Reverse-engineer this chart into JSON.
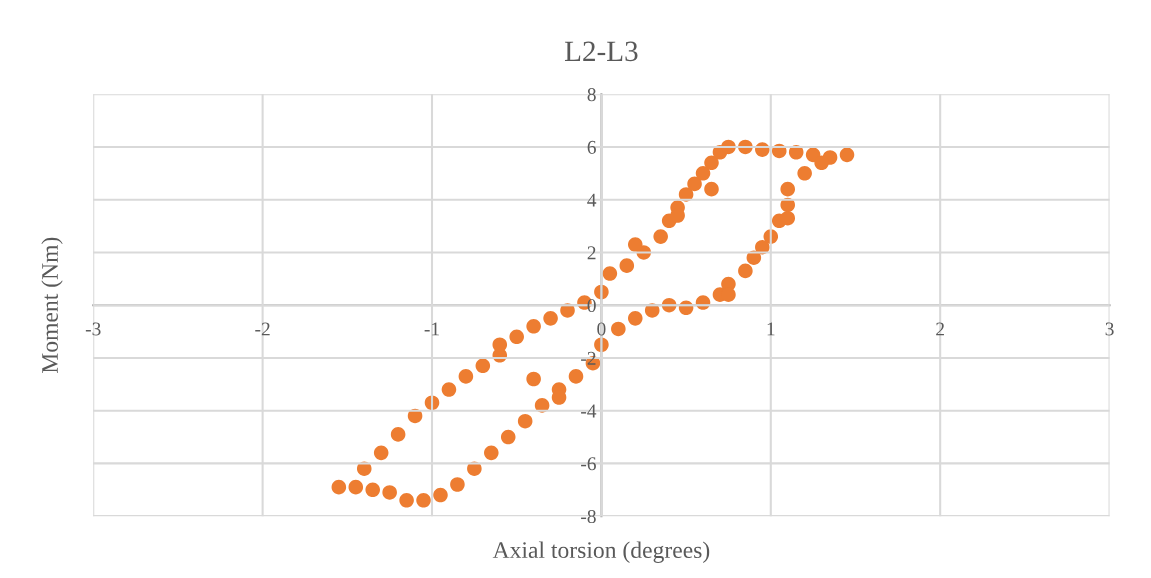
{
  "chart_data": {
    "type": "scatter",
    "title": "L2-L3",
    "xlabel": "Axial torsion (degrees)",
    "ylabel": "Moment (Nm)",
    "x": [
      -1.55,
      -1.4,
      -1.3,
      -1.2,
      -1.1,
      -1.0,
      -0.9,
      -0.8,
      -0.7,
      -0.6,
      -0.5,
      -0.4,
      -0.3,
      -0.2,
      -0.1,
      0.0,
      0.05,
      0.15,
      0.25,
      0.35,
      0.4,
      0.45,
      0.5,
      0.55,
      0.6,
      0.65,
      0.7,
      0.75,
      0.85,
      0.95,
      1.05,
      1.15,
      1.25,
      1.35,
      1.45,
      1.3,
      1.2,
      1.1,
      1.1,
      1.05,
      1.0,
      0.95,
      0.9,
      0.85,
      0.75,
      0.7,
      0.6,
      0.5,
      0.4,
      0.3,
      0.2,
      0.1,
      0.0,
      -0.05,
      -0.15,
      -0.25,
      -0.35,
      -0.45,
      -0.55,
      -0.65,
      -0.75,
      -0.85,
      -0.95,
      -1.05,
      -1.15,
      -1.25,
      -1.35,
      -1.45,
      0.45,
      0.65,
      0.2,
      -0.25,
      -0.6,
      -0.4,
      0.75,
      1.1
    ],
    "values": [
      -6.9,
      -6.2,
      -5.6,
      -4.9,
      -4.2,
      -3.7,
      -3.2,
      -2.7,
      -2.3,
      -1.9,
      -1.2,
      -0.8,
      -0.5,
      -0.2,
      0.1,
      0.5,
      1.2,
      1.5,
      2.0,
      2.6,
      3.2,
      3.7,
      4.2,
      4.6,
      5.0,
      5.4,
      5.8,
      6.0,
      6.0,
      5.9,
      5.85,
      5.8,
      5.7,
      5.6,
      5.7,
      5.4,
      5.0,
      4.4,
      3.8,
      3.2,
      2.6,
      2.2,
      1.8,
      1.3,
      0.8,
      0.4,
      0.1,
      -0.1,
      0.0,
      -0.2,
      -0.5,
      -0.9,
      -1.5,
      -2.2,
      -2.7,
      -3.2,
      -3.8,
      -4.4,
      -5.0,
      -5.6,
      -6.2,
      -6.8,
      -7.2,
      -7.4,
      -7.4,
      -7.1,
      -7.0,
      -6.9,
      3.4,
      4.4,
      2.3,
      -3.5,
      -1.5,
      -2.8,
      0.4,
      3.3
    ],
    "color": "#ed7d31",
    "marker": "circle",
    "grid": true,
    "xlim": [
      -3,
      3
    ],
    "xticks": [
      -3,
      -2,
      -1,
      0,
      1,
      2,
      3
    ],
    "ylim": [
      -8,
      8
    ],
    "yticks": [
      -8,
      -6,
      -4,
      -2,
      0,
      2,
      4,
      6,
      8
    ]
  }
}
